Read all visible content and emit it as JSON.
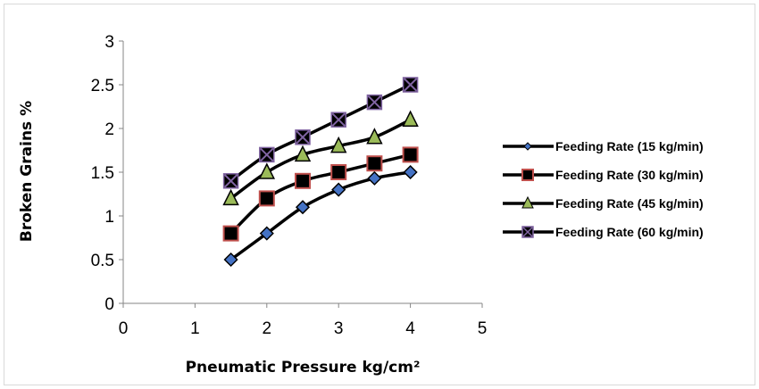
{
  "chart_data": {
    "type": "line",
    "xlabel": "Pneumatic Pressure kg/cm²",
    "ylabel": "Broken Grains %",
    "xlim": [
      0,
      5
    ],
    "ylim": [
      0,
      3
    ],
    "x_ticks": [
      "0",
      "1",
      "2",
      "3",
      "4",
      "5"
    ],
    "y_ticks": [
      "0",
      "0.5",
      "1",
      "1.5",
      "2",
      "2.5",
      "3"
    ],
    "x": [
      1.5,
      2,
      2.5,
      3,
      3.5,
      4
    ],
    "grid": false,
    "legend_position": "right",
    "series": [
      {
        "name": "Feeding Rate (15 kg/min)",
        "values": [
          0.5,
          0.8,
          1.1,
          1.3,
          1.43,
          1.5
        ],
        "marker": "diamond",
        "marker_color": "#4472c4"
      },
      {
        "name": "Feeding Rate (30 kg/min)",
        "values": [
          0.8,
          1.2,
          1.4,
          1.5,
          1.6,
          1.7
        ],
        "marker": "square",
        "marker_color": "#c0504d"
      },
      {
        "name": "Feeding Rate (45 kg/min)",
        "values": [
          1.2,
          1.5,
          1.7,
          1.8,
          1.9,
          2.1
        ],
        "marker": "triangle",
        "marker_color": "#9bbb59"
      },
      {
        "name": "Feeding Rate (60 kg/min)",
        "values": [
          1.4,
          1.7,
          1.9,
          2.1,
          2.3,
          2.5
        ],
        "marker": "x-square",
        "marker_color": "#8064a2"
      }
    ]
  }
}
